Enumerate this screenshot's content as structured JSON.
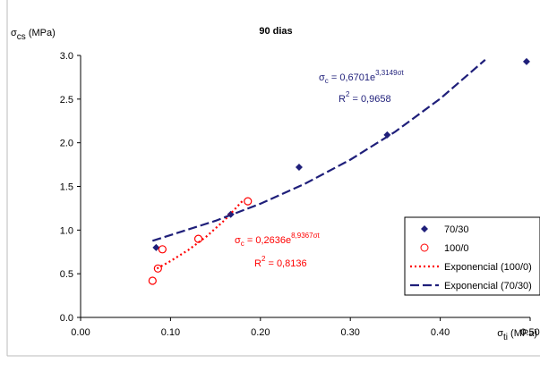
{
  "chart_data": {
    "type": "scatter",
    "title": "90 dias",
    "y_label": {
      "symbol": "σ",
      "sub": "cs",
      "unit": " (MPa)"
    },
    "x_label": {
      "symbol": "σ",
      "sub": "ti",
      "unit": " (MPa)"
    },
    "xlim": [
      0,
      0.5
    ],
    "xticks": [
      {
        "value": 0,
        "label": "0.00"
      },
      {
        "value": 0.1,
        "label": "0.10"
      },
      {
        "value": 0.2,
        "label": "0.20"
      },
      {
        "value": 0.3,
        "label": "0.30"
      },
      {
        "value": 0.4,
        "label": "0.40"
      },
      {
        "value": 0.5,
        "label": "0.50"
      }
    ],
    "ylim": [
      0,
      3
    ],
    "yticks": [
      {
        "value": 0,
        "label": "0.0"
      },
      {
        "value": 0.5,
        "label": "0.5"
      },
      {
        "value": 1,
        "label": "1.0"
      },
      {
        "value": 1.5,
        "label": "1.5"
      },
      {
        "value": 2,
        "label": "2.0"
      },
      {
        "value": 2.5,
        "label": "2.5"
      },
      {
        "value": 3,
        "label": "3.0"
      }
    ],
    "grid": false,
    "legend": "right",
    "series": [
      {
        "name": "70/30",
        "color": "#1f1f7a",
        "marker": "diamond",
        "x": [
          0.084,
          0.167,
          0.243,
          0.341,
          0.496
        ],
        "values": [
          0.8,
          1.18,
          1.72,
          2.09,
          2.93
        ]
      },
      {
        "name": "100/0",
        "color": "#ff0000",
        "marker": "circle",
        "x": [
          0.08,
          0.086,
          0.091,
          0.131,
          0.186
        ],
        "values": [
          0.42,
          0.56,
          0.78,
          0.9,
          1.33
        ]
      },
      {
        "name": "Exponencial (100/0)",
        "color": "#ff0000",
        "marker": "dotted",
        "x": [
          0.085,
          0.1,
          0.12,
          0.14,
          0.16,
          0.18
        ],
        "values": [
          0.56,
          0.645,
          0.773,
          0.927,
          1.112,
          1.333
        ]
      },
      {
        "name": "Exponencial (70/30)",
        "color": "#1f1f7a",
        "marker": "dashed",
        "x": [
          0.08,
          0.15,
          0.2,
          0.25,
          0.3,
          0.35,
          0.4,
          0.45
        ],
        "values": [
          0.877,
          1.106,
          1.302,
          1.533,
          1.806,
          2.127,
          2.505,
          2.95
        ]
      }
    ],
    "annotations": [
      {
        "color": "#1f1f7a",
        "eq": {
          "symbol": "σ",
          "sub": "c",
          "text": " = 0,6701e",
          "sup": "3,3149σt"
        },
        "r2": {
          "text": "R",
          "sup": "2",
          "rest": " = 0,9658"
        }
      },
      {
        "color": "#ff0000",
        "eq": {
          "symbol": "σ",
          "sub": "c",
          "text": " = 0,2636e",
          "sup": "8,9367σt"
        },
        "r2": {
          "text": "R",
          "sup": "2",
          "rest": " = 0,8136"
        }
      }
    ]
  }
}
